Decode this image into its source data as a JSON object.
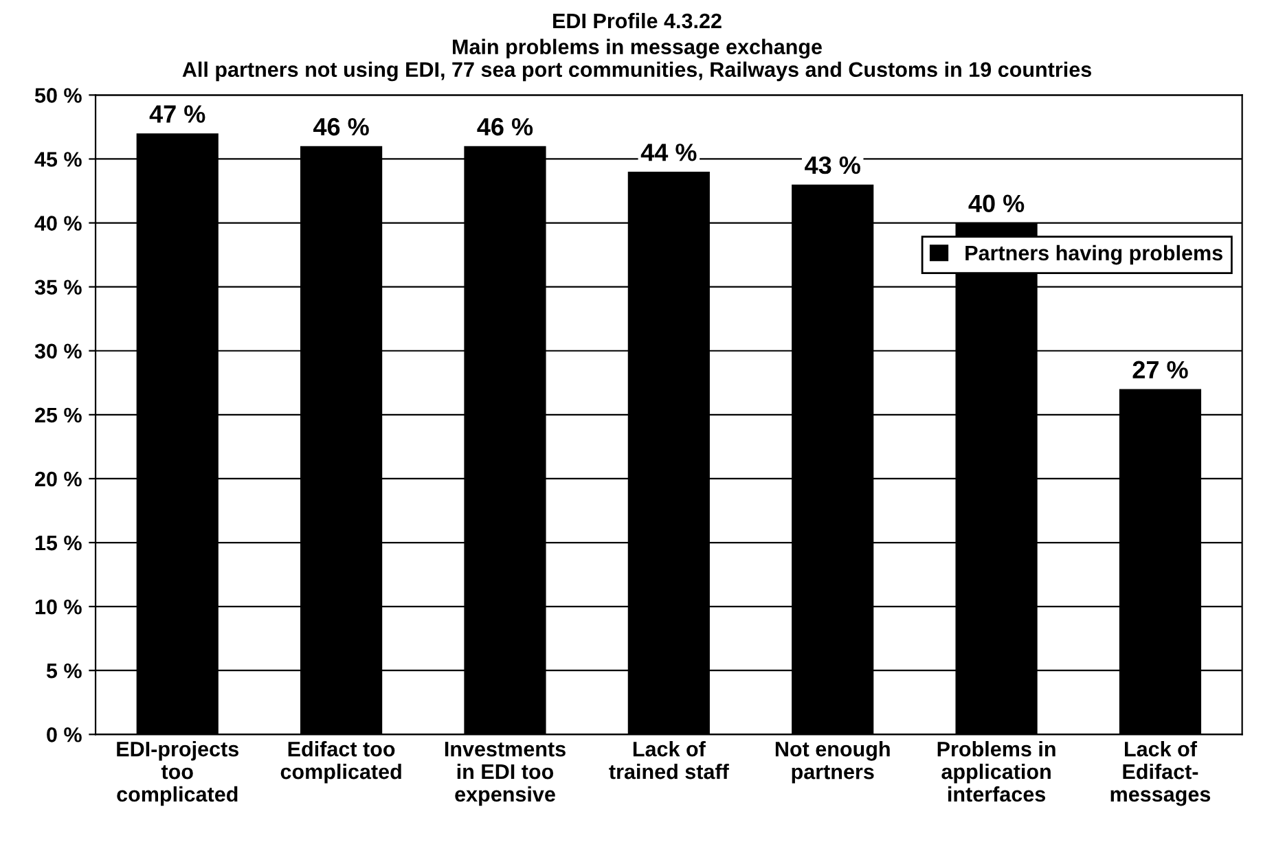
{
  "chart_data": {
    "type": "bar",
    "title": "EDI Profile 4.3.22",
    "subtitle": "Main problems in message exchange\nAll partners not using EDI, 77 sea port communities, Railways and Customs in 19 countries",
    "categories": [
      "EDI-projects\ntoo\ncomplicated",
      "Edifact too\ncomplicated",
      "Investments\nin EDI too\nexpensive",
      "Lack of\ntrained staff",
      "Not enough\npartners",
      "Problems in\napplication\ninterfaces",
      "Lack of\nEdifact-\nmessages"
    ],
    "series": [
      {
        "name": "Partners having problems",
        "color": "#000000",
        "values": [
          47,
          46,
          46,
          44,
          43,
          40,
          27
        ],
        "value_labels": [
          "47 %",
          "46 %",
          "46 %",
          "44 %",
          "43 %",
          "40 %",
          "27 %"
        ]
      }
    ],
    "ylim": [
      0,
      50
    ],
    "yticks": [
      {
        "value": 0,
        "label": "0 %"
      },
      {
        "value": 5,
        "label": "5 %"
      },
      {
        "value": 10,
        "label": "10 %"
      },
      {
        "value": 15,
        "label": "15 %"
      },
      {
        "value": 20,
        "label": "20 %"
      },
      {
        "value": 25,
        "label": "25 %"
      },
      {
        "value": 30,
        "label": "30 %"
      },
      {
        "value": 35,
        "label": "35 %"
      },
      {
        "value": 40,
        "label": "40 %"
      },
      {
        "value": 45,
        "label": "45 %"
      },
      {
        "value": 50,
        "label": "50 %"
      }
    ],
    "grid": "y",
    "legend": "center right"
  }
}
